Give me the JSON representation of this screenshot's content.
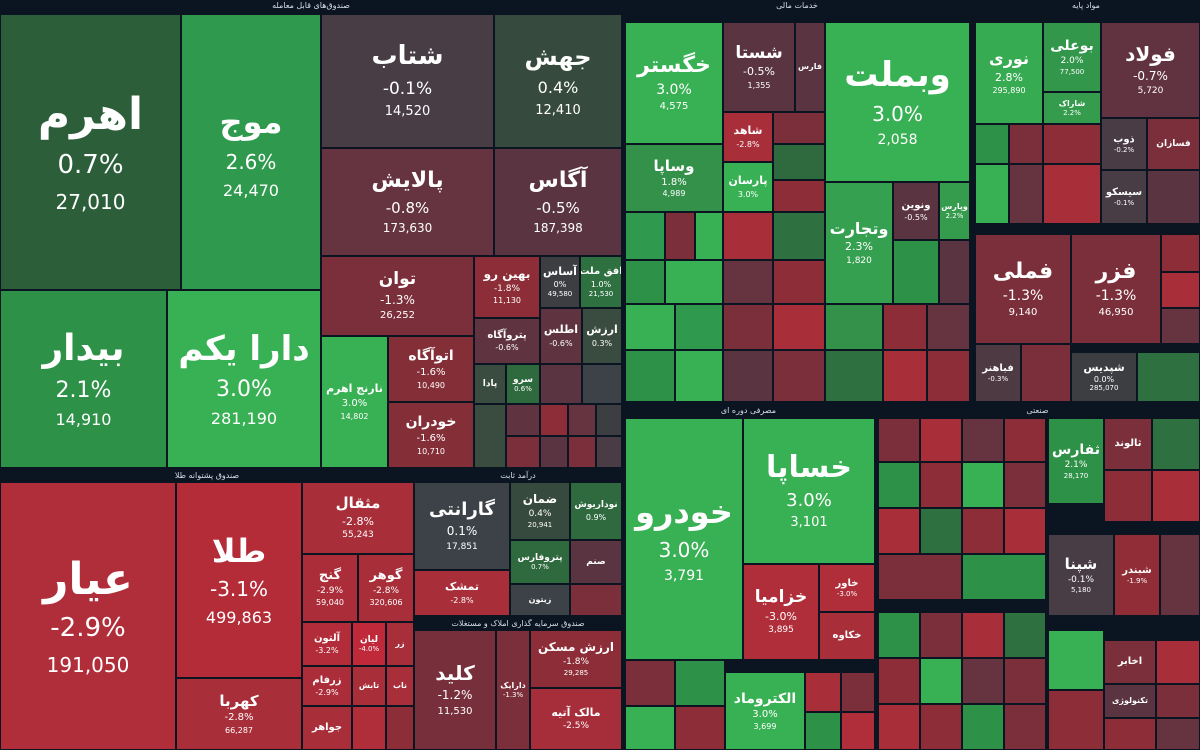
{
  "chart_data": {
    "type": "treemap",
    "title": "",
    "sectors": [
      {
        "id": "etf",
        "title": "صندوق‌های قابل معامله",
        "tiles": [
          {
            "name": "اهرم",
            "change": "0.7%",
            "value": "27,010",
            "color": "#2c5e3a"
          },
          {
            "name": "موج",
            "change": "2.6%",
            "value": "24,470",
            "color": "#2f9a4d"
          },
          {
            "name": "بیدار",
            "change": "2.1%",
            "value": "14,910",
            "color": "#2e9148"
          },
          {
            "name": "دارا یکم",
            "change": "3.0%",
            "value": "281,190",
            "color": "#38b054"
          },
          {
            "name": "شتاب",
            "change": "-0.1%",
            "value": "14,520",
            "color": "#483d45"
          },
          {
            "name": "جهش",
            "change": "0.4%",
            "value": "12,410",
            "color": "#374a3e"
          },
          {
            "name": "پالایش",
            "change": "-0.8%",
            "value": "173,630",
            "color": "#663340"
          },
          {
            "name": "آگاس",
            "change": "-0.5%",
            "value": "187,398",
            "color": "#5a3541"
          },
          {
            "name": "توان",
            "change": "-1.3%",
            "value": "26,252",
            "color": "#7b2f3a"
          },
          {
            "name": "بهین رو",
            "change": "-1.8%",
            "value": "11,130",
            "color": "#8c2d37"
          },
          {
            "name": "آساس",
            "change": "0%",
            "value": "49,580",
            "color": "#3c3e42"
          },
          {
            "name": "افق ملت",
            "change": "1.0%",
            "value": "21,530",
            "color": "#2e7040"
          },
          {
            "name": "پتروآگاه",
            "change": "-0.6%",
            "value": "",
            "color": "#5f3440"
          },
          {
            "name": "اطلس",
            "change": "-0.6%",
            "value": "",
            "color": "#5f3440"
          },
          {
            "name": "ارزش",
            "change": "0.3%",
            "value": "",
            "color": "#3a4b3f"
          },
          {
            "name": "نارنج اهرم",
            "change": "3.0%",
            "value": "14,802",
            "color": "#38b054"
          },
          {
            "name": "اتوآگاه",
            "change": "-1.6%",
            "value": "10,490",
            "color": "#842e38"
          },
          {
            "name": "خودران",
            "change": "-1.6%",
            "value": "10,710",
            "color": "#842e38"
          },
          {
            "name": "پادا",
            "change": "",
            "value": "",
            "color": "#3a4b3f"
          },
          {
            "name": "سرو",
            "change": "0.6%",
            "value": "",
            "color": "#2e6a3e"
          }
        ]
      },
      {
        "id": "gold",
        "title": "صندوق پشتوانه طلا",
        "tiles": [
          {
            "name": "عیار",
            "change": "-2.9%",
            "value": "191,050",
            "color": "#b02d3a"
          },
          {
            "name": "طلا",
            "change": "-3.1%",
            "value": "499,863",
            "color": "#b52c39"
          },
          {
            "name": "مثقال",
            "change": "-2.8%",
            "value": "55,243",
            "color": "#a82e3a"
          },
          {
            "name": "گنج",
            "change": "-2.9%",
            "value": "59,040",
            "color": "#ab2d3a"
          },
          {
            "name": "گوهر",
            "change": "-2.8%",
            "value": "320,606",
            "color": "#a82e3a"
          },
          {
            "name": "آلتون",
            "change": "-3.2%",
            "value": "",
            "color": "#b32c39"
          },
          {
            "name": "لیان",
            "change": "-4.0%",
            "value": "",
            "color": "#c0293a"
          },
          {
            "name": "زرفام",
            "change": "-2.9%",
            "value": "",
            "color": "#ab2d3a"
          },
          {
            "name": "کهربا",
            "change": "-2.8%",
            "value": "66,287",
            "color": "#a82e3a"
          },
          {
            "name": "جواهر",
            "change": "",
            "value": "",
            "color": "#a82e3a"
          },
          {
            "name": "تابش",
            "change": "",
            "value": "",
            "color": "#a82e3a"
          },
          {
            "name": "ناب",
            "change": "",
            "value": "",
            "color": "#a82e3a"
          },
          {
            "name": "زر",
            "change": "",
            "value": "",
            "color": "#a82e3a"
          }
        ]
      },
      {
        "id": "fixed",
        "title": "درآمد ثابت",
        "tiles": [
          {
            "name": "گارانتی",
            "change": "0.1%",
            "value": "17,851",
            "color": "#3c4247"
          },
          {
            "name": "ضمان",
            "change": "0.4%",
            "value": "20,941",
            "color": "#374a3e"
          },
          {
            "name": "نوداریوش",
            "change": "0.9%",
            "value": "",
            "color": "#2e6a3e"
          },
          {
            "name": "پتروفارس",
            "change": "0.7%",
            "value": "",
            "color": "#2f6a3f"
          },
          {
            "name": "صنم",
            "change": "",
            "value": "",
            "color": "#5a3541"
          },
          {
            "name": "تمشک",
            "change": "-2.8%",
            "value": "",
            "color": "#a82e3a"
          },
          {
            "name": "زیتون",
            "change": "",
            "value": "",
            "color": "#3c4247"
          }
        ]
      },
      {
        "id": "housing",
        "title": "صندوق سرمایه گذاری املاک و مستغلات",
        "tiles": [
          {
            "name": "کلید",
            "change": "-1.2%",
            "value": "11,530",
            "color": "#762f3b"
          },
          {
            "name": "دارایک",
            "change": "-1.3%",
            "value": "",
            "color": "#7b2f3a"
          },
          {
            "name": "ارزش مسکن",
            "change": "-1.8%",
            "value": "29,285",
            "color": "#8c2d37"
          },
          {
            "name": "مالک آتیه",
            "change": "-2.5%",
            "value": "",
            "color": "#a52e3a"
          }
        ]
      },
      {
        "id": "financial",
        "title": "خدمات مالی",
        "tiles": [
          {
            "name": "خگستر",
            "change": "3.0%",
            "value": "4,575",
            "color": "#38b054"
          },
          {
            "name": "شستا",
            "change": "-0.5%",
            "value": "1,355",
            "color": "#5a3541"
          },
          {
            "name": "فارس",
            "change": "",
            "value": "",
            "color": "#5a3541"
          },
          {
            "name": "وبملت",
            "change": "3.0%",
            "value": "2,058",
            "color": "#38b054"
          },
          {
            "name": "وساپا",
            "change": "1.8%",
            "value": "4,989",
            "color": "#34914a"
          },
          {
            "name": "شاهد",
            "change": "-2.8%",
            "value": "",
            "color": "#a82e3a"
          },
          {
            "name": "پارسان",
            "change": "3.0%",
            "value": "",
            "color": "#38b054"
          },
          {
            "name": "وتجارت",
            "change": "2.3%",
            "value": "1,820",
            "color": "#35a04f"
          },
          {
            "name": "ونوین",
            "change": "-0.5%",
            "value": "",
            "color": "#5a3541"
          },
          {
            "name": "وپارس",
            "change": "2.2%",
            "value": "",
            "color": "#359c4e"
          }
        ]
      },
      {
        "id": "basic",
        "title": "مواد پایه",
        "tiles": [
          {
            "name": "نوری",
            "change": "2.8%",
            "value": "295,890",
            "color": "#37ab52"
          },
          {
            "name": "بوعلی",
            "change": "2.0%",
            "value": "77,500",
            "color": "#32964b"
          },
          {
            "name": "فولاد",
            "change": "-0.7%",
            "value": "5,720",
            "color": "#613341"
          },
          {
            "name": "شاراک",
            "change": "2.2%",
            "value": "",
            "color": "#359c4e"
          },
          {
            "name": "فملی",
            "change": "-1.3%",
            "value": "9,140",
            "color": "#7b2f3a"
          },
          {
            "name": "فزر",
            "change": "-1.3%",
            "value": "46,950",
            "color": "#7b2f3a"
          },
          {
            "name": "ذوب",
            "change": "-0.2%",
            "value": "",
            "color": "#4a3c44"
          },
          {
            "name": "سیسکو",
            "change": "-0.1%",
            "value": "",
            "color": "#483d45"
          },
          {
            "name": "فسازان",
            "change": "",
            "value": "",
            "color": "#7b2f3a"
          },
          {
            "name": "شپدیس",
            "change": "0.0%",
            "value": "285,070",
            "color": "#3c3e42"
          },
          {
            "name": "فباهنر",
            "change": "-0.3%",
            "value": "",
            "color": "#4e3a43"
          }
        ]
      },
      {
        "id": "cyclical",
        "title": "مصرفی دوره ای",
        "tiles": [
          {
            "name": "خودرو",
            "change": "3.0%",
            "value": "3,791",
            "color": "#38b054"
          },
          {
            "name": "خساپا",
            "change": "3.0%",
            "value": "3,101",
            "color": "#38b054"
          },
          {
            "name": "خزامیا",
            "change": "-3.0%",
            "value": "3,895",
            "color": "#b02d3a"
          },
          {
            "name": "خاور",
            "change": "-3.0%",
            "value": "",
            "color": "#b02d3a"
          },
          {
            "name": "خکاوه",
            "change": "",
            "value": "",
            "color": "#a82e3a"
          },
          {
            "name": "الکتروماد",
            "change": "3.0%",
            "value": "3,699",
            "color": "#38b054"
          }
        ]
      },
      {
        "id": "industrial",
        "title": "صنعتی",
        "tiles": [
          {
            "name": "ثفارس",
            "change": "2.1%",
            "value": "28,170",
            "color": "#2e9148"
          },
          {
            "name": "ثالوند",
            "change": "",
            "value": "",
            "color": "#7b2f3a"
          },
          {
            "name": "شپنا",
            "change": "-0.1%",
            "value": "5,180",
            "color": "#483d45"
          },
          {
            "name": "شبندر",
            "change": "-1.9%",
            "value": "",
            "color": "#902d37"
          },
          {
            "name": "اخابر",
            "change": "",
            "value": "",
            "color": "#7b2f3a"
          },
          {
            "name": "تکنولوژی",
            "change": "",
            "value": "",
            "color": "#5a3541"
          }
        ]
      }
    ],
    "legend": "none"
  },
  "palette": {
    "strong_green": "#38b054",
    "green": "#2e9148",
    "dark_green": "#2c5e3a",
    "neutral": "#3c3e42",
    "dark_red": "#663340",
    "red": "#8c2d37",
    "strong_red": "#b02d3a",
    "background": "#0b1522"
  }
}
